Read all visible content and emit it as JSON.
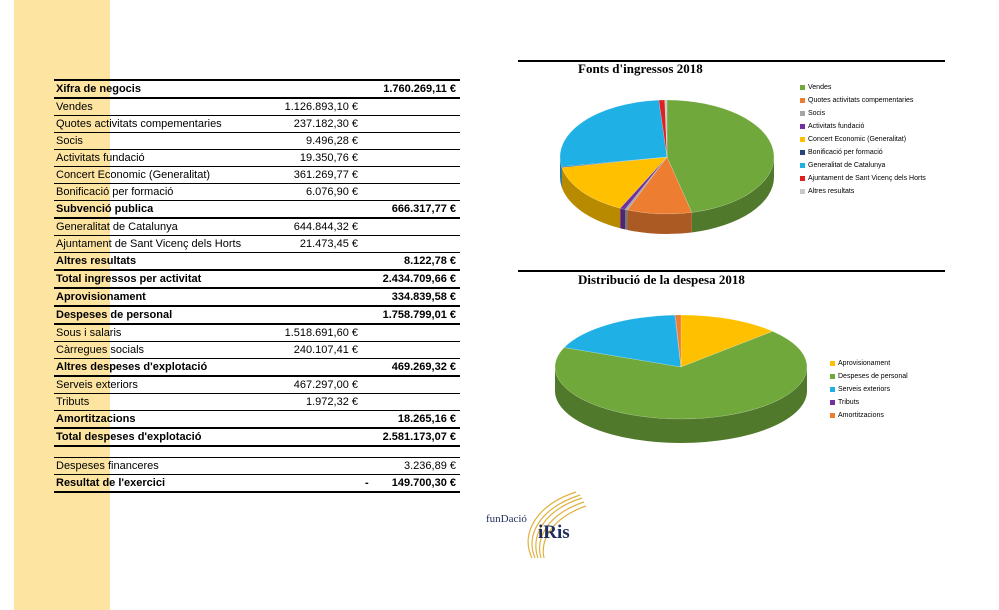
{
  "finances": {
    "income": [
      {
        "label": "Xifra de negocis",
        "v1": "",
        "v2": "1.760.269,11 €",
        "bold": true
      },
      {
        "label": "Vendes",
        "v1": "1.126.893,10 €",
        "v2": "",
        "bold": false
      },
      {
        "label": "Quotes activitats compementaries",
        "v1": "237.182,30 €",
        "v2": "",
        "bold": false
      },
      {
        "label": "Socis",
        "v1": "9.496,28 €",
        "v2": "",
        "bold": false
      },
      {
        "label": "Activitats fundació",
        "v1": "19.350,76 €",
        "v2": "",
        "bold": false
      },
      {
        "label": "Concert Economic (Generalitat)",
        "v1": "361.269,77 €",
        "v2": "",
        "bold": false
      },
      {
        "label": "Bonificació per formació",
        "v1": "6.076,90 €",
        "v2": "",
        "bold": false
      },
      {
        "label": "Subvenció publica",
        "v1": "",
        "v2": "666.317,77 €",
        "bold": true
      },
      {
        "label": "Generalitat de Catalunya",
        "v1": "644.844,32 €",
        "v2": "",
        "bold": false
      },
      {
        "label": "Ajuntament de Sant Vicenç dels Horts",
        "v1": "21.473,45 €",
        "v2": "",
        "bold": false
      },
      {
        "label": "Altres resultats",
        "v1": "",
        "v2": "8.122,78 €",
        "bold": true
      },
      {
        "label": "Total ingressos per activitat",
        "v1": "",
        "v2": "2.434.709,66 €",
        "bold": true
      }
    ],
    "expenses": [
      {
        "label": "Aprovisionament",
        "v1": "",
        "v2": "334.839,58 €",
        "bold": true
      },
      {
        "label": "Despeses de personal",
        "v1": "",
        "v2": "1.758.799,01 €",
        "bold": true
      },
      {
        "label": "Sous i salaris",
        "v1": "1.518.691,60 €",
        "v2": "",
        "bold": false
      },
      {
        "label": "Càrregues socials",
        "v1": "240.107,41 €",
        "v2": "",
        "bold": false
      },
      {
        "label": "Altres despeses d'explotació",
        "v1": "",
        "v2": "469.269,32 €",
        "bold": true
      },
      {
        "label": "Serveis exteriors",
        "v1": "467.297,00 €",
        "v2": "",
        "bold": false
      },
      {
        "label": "Tributs",
        "v1": "1.972,32 €",
        "v2": "",
        "bold": false
      },
      {
        "label": "Amortitzacions",
        "v1": "",
        "v2": "18.265,16 €",
        "bold": true
      },
      {
        "label": "Total despeses d'explotació",
        "v1": "",
        "v2": "2.581.173,07 €",
        "bold": true
      }
    ],
    "result": [
      {
        "label": "Despeses financeres",
        "sign": "",
        "v2": "3.236,89 €",
        "bold": false
      },
      {
        "label": "Resultat de l'exercici",
        "sign": "-",
        "v2": "149.700,30 €",
        "bold": true
      }
    ]
  },
  "chart_data": [
    {
      "type": "pie",
      "title": "Fonts d'ingressos 2018",
      "categories": [
        "Vendes",
        "Quotes activitats compementaries",
        "Socis",
        "Activitats fundació",
        "Concert Economic (Generalitat)",
        "Bonificació per formació",
        "Generalitat de Catalunya",
        "Ajuntament de Sant Vicenç dels Horts",
        "Altres resultats"
      ],
      "values": [
        1126893.1,
        237182.3,
        9496.28,
        19350.76,
        361269.77,
        6076.9,
        644844.32,
        21473.45,
        8122.78
      ],
      "colors": [
        "#70a83c",
        "#ed7d31",
        "#a5a5a5",
        "#7030a0",
        "#ffc000",
        "#264478",
        "#1fb0e6",
        "#e02020",
        "#c8c8c8"
      ],
      "legend_position": "right"
    },
    {
      "type": "pie",
      "title": "Distribució de la despesa 2018",
      "categories": [
        "Aprovisionament",
        "Despeses de personal",
        "Serveis exteriors",
        "Tributs",
        "Amortitzacions"
      ],
      "values": [
        334839.58,
        1758799.01,
        467297.0,
        1972.32,
        18265.16
      ],
      "colors": [
        "#ffc000",
        "#70a83c",
        "#1fb0e6",
        "#7030a0",
        "#ed7d31"
      ],
      "legend_position": "right"
    }
  ],
  "logo": {
    "line1": "funDació",
    "line2": "iRis"
  }
}
